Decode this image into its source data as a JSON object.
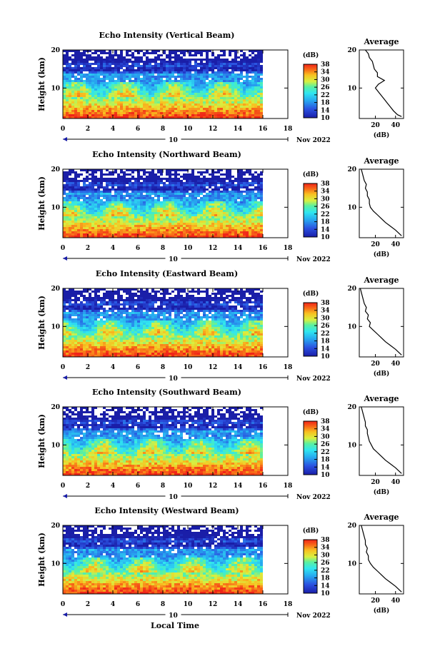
{
  "chart_data": {
    "type": "heatmap",
    "xlabel": "Local Time",
    "date_marker": "10",
    "date_label": "Nov 2022",
    "x_ticks": [
      "0",
      "2",
      "4",
      "6",
      "8",
      "10",
      "12",
      "14",
      "16",
      "18"
    ],
    "xlim": [
      0,
      18
    ],
    "data_end_hour": 16,
    "ylabel": "Height (km)",
    "y_ticks": [
      "20",
      "10"
    ],
    "ylim": [
      2,
      20
    ],
    "colorbar": {
      "label": "(dB)",
      "ticks": [
        "38",
        "34",
        "30",
        "26",
        "22",
        "18",
        "14",
        "10"
      ],
      "range": [
        10,
        38
      ]
    },
    "profile_title": "Average",
    "profile_xlabel": "(dB)",
    "profile_x_ticks": [
      "20",
      "40"
    ],
    "profile_xlim": [
      4,
      48
    ],
    "panels": [
      {
        "title": "Echo Intensity (Vertical Beam)",
        "average_profile": {
          "height_km": [
            2.5,
            3,
            4,
            5,
            6,
            7,
            8,
            9,
            10,
            11,
            12,
            13,
            14,
            15,
            16,
            17,
            18,
            19,
            20
          ],
          "db": [
            46,
            42,
            38,
            35,
            32,
            29,
            26,
            23,
            20,
            23,
            29,
            22,
            22,
            19,
            18,
            17,
            14,
            13,
            10
          ]
        }
      },
      {
        "title": "Echo Intensity (Northward Beam)",
        "average_profile": {
          "height_km": [
            2.5,
            3,
            4,
            5,
            6,
            7,
            8,
            9,
            10,
            11,
            12,
            13,
            14,
            15,
            16,
            17,
            18,
            19,
            20
          ],
          "db": [
            46,
            44,
            40,
            35,
            30,
            26,
            22,
            18,
            15,
            14,
            14,
            12,
            12,
            10,
            11,
            9,
            8,
            7,
            6
          ]
        }
      },
      {
        "title": "Echo Intensity (Eastward Beam)",
        "average_profile": {
          "height_km": [
            2.5,
            3,
            4,
            5,
            6,
            7,
            8,
            9,
            10,
            11,
            12,
            13,
            14,
            15,
            16,
            17,
            18,
            19,
            20
          ],
          "db": [
            46,
            44,
            40,
            35,
            30,
            26,
            22,
            18,
            14,
            15,
            12,
            13,
            10,
            11,
            9,
            8,
            7,
            6,
            5
          ]
        }
      },
      {
        "title": "Echo Intensity (Southward Beam)",
        "average_profile": {
          "height_km": [
            2.5,
            3,
            4,
            5,
            6,
            7,
            8,
            9,
            10,
            11,
            12,
            13,
            14,
            15,
            16,
            17,
            18,
            19,
            20
          ],
          "db": [
            46,
            44,
            40,
            35,
            30,
            26,
            22,
            18,
            16,
            14,
            13,
            12,
            12,
            10,
            10,
            9,
            8,
            7,
            6
          ]
        }
      },
      {
        "title": "Echo Intensity (Westward Beam)",
        "average_profile": {
          "height_km": [
            2.5,
            3,
            4,
            5,
            6,
            7,
            8,
            9,
            10,
            11,
            12,
            13,
            14,
            15,
            16,
            17,
            18,
            19,
            20
          ],
          "db": [
            46,
            44,
            40,
            35,
            30,
            26,
            22,
            18,
            15,
            13,
            13,
            11,
            12,
            10,
            10,
            9,
            8,
            7,
            6
          ]
        }
      }
    ]
  }
}
